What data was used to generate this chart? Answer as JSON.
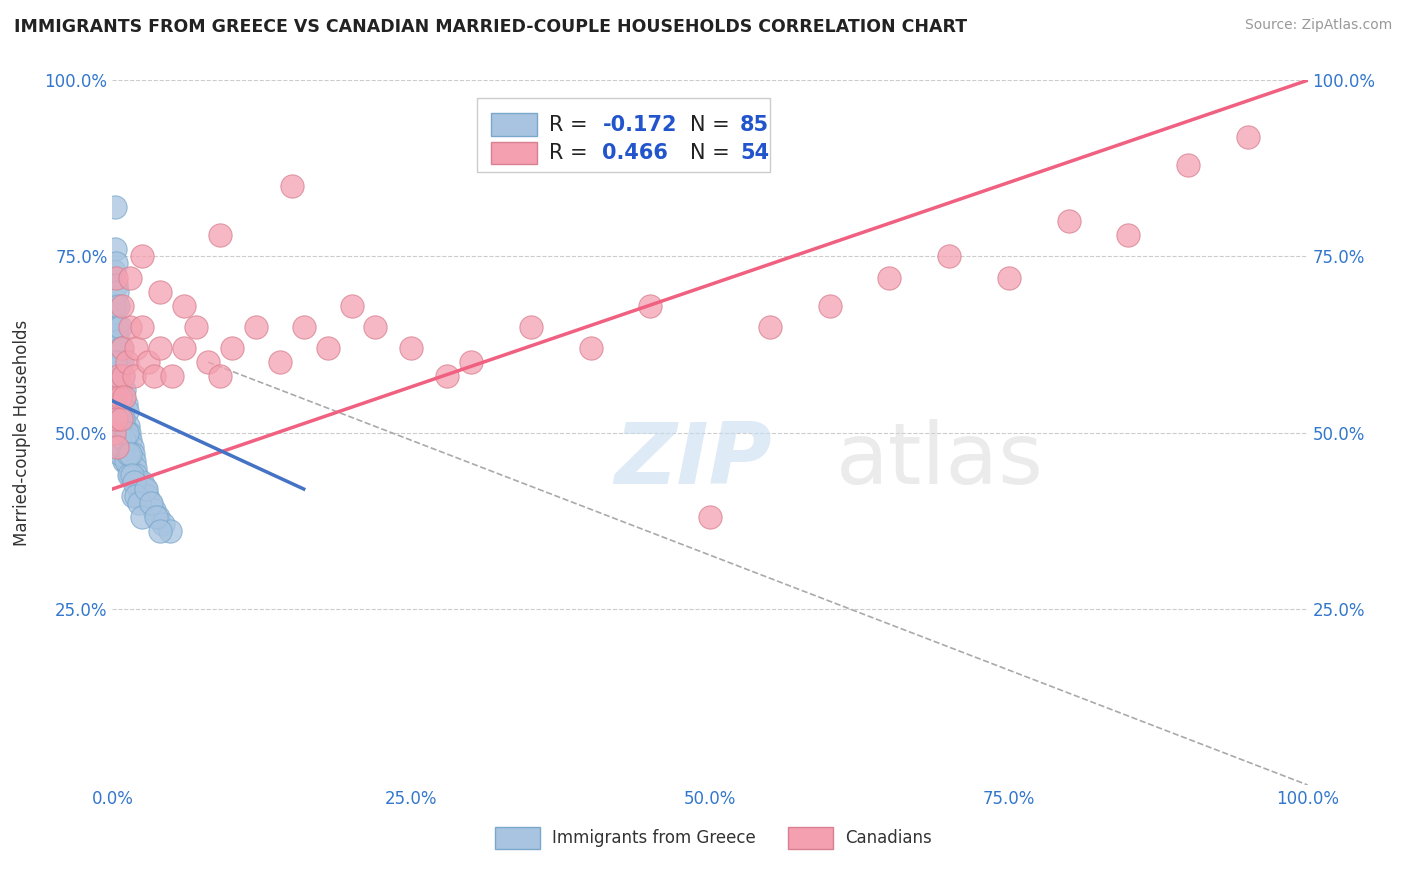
{
  "title": "IMMIGRANTS FROM GREECE VS CANADIAN MARRIED-COUPLE HOUSEHOLDS CORRELATION CHART",
  "source": "Source: ZipAtlas.com",
  "ylabel": "Married-couple Households",
  "xlim": [
    0.0,
    1.0
  ],
  "ylim": [
    0.0,
    1.0
  ],
  "xticks": [
    0.0,
    0.25,
    0.5,
    0.75,
    1.0
  ],
  "xticklabels": [
    "0.0%",
    "25.0%",
    "50.0%",
    "75.0%",
    "100.0%"
  ],
  "yticks_left": [
    0.25,
    0.5,
    0.75,
    1.0
  ],
  "yticklabels_left": [
    "25.0%",
    "50.0%",
    "75.0%",
    "100.0%"
  ],
  "yticks_right": [
    0.25,
    0.5,
    0.75,
    1.0
  ],
  "yticklabels_right": [
    "25.0%",
    "50.0%",
    "75.0%",
    "100.0%"
  ],
  "blue_R": -0.172,
  "blue_N": 85,
  "pink_R": 0.466,
  "pink_N": 54,
  "blue_color": "#a8c4e0",
  "pink_color": "#f4a0b0",
  "blue_line_color": "#4472c4",
  "pink_line_color": "#f06080",
  "grid_color": "#cccccc",
  "blue_line_x0": 0.0,
  "blue_line_x1": 0.16,
  "blue_line_y0": 0.545,
  "blue_line_y1": 0.42,
  "pink_line_x0": 0.0,
  "pink_line_x1": 1.0,
  "pink_line_y0": 0.42,
  "pink_line_y1": 1.0,
  "dash_line_x0": 0.08,
  "dash_line_x1": 1.0,
  "dash_line_y0": 0.6,
  "dash_line_y1": 0.0,
  "blue_x": [
    0.001,
    0.001,
    0.002,
    0.002,
    0.002,
    0.003,
    0.003,
    0.003,
    0.003,
    0.004,
    0.004,
    0.004,
    0.004,
    0.005,
    0.005,
    0.005,
    0.005,
    0.006,
    0.006,
    0.006,
    0.006,
    0.007,
    0.007,
    0.007,
    0.007,
    0.008,
    0.008,
    0.008,
    0.009,
    0.009,
    0.009,
    0.01,
    0.01,
    0.01,
    0.011,
    0.011,
    0.012,
    0.012,
    0.013,
    0.013,
    0.014,
    0.014,
    0.015,
    0.015,
    0.016,
    0.017,
    0.018,
    0.019,
    0.02,
    0.021,
    0.022,
    0.023,
    0.025,
    0.027,
    0.029,
    0.031,
    0.035,
    0.038,
    0.042,
    0.048,
    0.001,
    0.002,
    0.003,
    0.004,
    0.005,
    0.006,
    0.007,
    0.008,
    0.009,
    0.01,
    0.011,
    0.012,
    0.013,
    0.014,
    0.015,
    0.016,
    0.017,
    0.018,
    0.02,
    0.022,
    0.025,
    0.028,
    0.032,
    0.036,
    0.04
  ],
  "blue_y": [
    0.73,
    0.67,
    0.82,
    0.76,
    0.68,
    0.74,
    0.71,
    0.64,
    0.58,
    0.7,
    0.65,
    0.6,
    0.55,
    0.68,
    0.63,
    0.58,
    0.52,
    0.65,
    0.6,
    0.55,
    0.5,
    0.62,
    0.57,
    0.52,
    0.47,
    0.6,
    0.55,
    0.5,
    0.58,
    0.53,
    0.48,
    0.56,
    0.51,
    0.46,
    0.54,
    0.49,
    0.53,
    0.48,
    0.51,
    0.46,
    0.5,
    0.45,
    0.49,
    0.44,
    0.48,
    0.47,
    0.46,
    0.45,
    0.44,
    0.43,
    0.42,
    0.41,
    0.43,
    0.42,
    0.41,
    0.4,
    0.39,
    0.38,
    0.37,
    0.36,
    0.54,
    0.6,
    0.57,
    0.53,
    0.5,
    0.47,
    0.52,
    0.48,
    0.52,
    0.49,
    0.46,
    0.5,
    0.47,
    0.44,
    0.47,
    0.44,
    0.41,
    0.43,
    0.41,
    0.4,
    0.38,
    0.42,
    0.4,
    0.38,
    0.36
  ],
  "pink_x": [
    0.001,
    0.002,
    0.003,
    0.004,
    0.005,
    0.006,
    0.007,
    0.008,
    0.009,
    0.01,
    0.012,
    0.015,
    0.018,
    0.02,
    0.025,
    0.03,
    0.035,
    0.04,
    0.05,
    0.06,
    0.07,
    0.08,
    0.09,
    0.1,
    0.12,
    0.14,
    0.16,
    0.18,
    0.2,
    0.22,
    0.25,
    0.28,
    0.3,
    0.35,
    0.4,
    0.45,
    0.5,
    0.55,
    0.6,
    0.65,
    0.7,
    0.75,
    0.8,
    0.85,
    0.9,
    0.95,
    0.003,
    0.008,
    0.015,
    0.025,
    0.04,
    0.06,
    0.09,
    0.15
  ],
  "pink_y": [
    0.5,
    0.55,
    0.52,
    0.48,
    0.58,
    0.55,
    0.52,
    0.62,
    0.58,
    0.55,
    0.6,
    0.65,
    0.58,
    0.62,
    0.65,
    0.6,
    0.58,
    0.62,
    0.58,
    0.62,
    0.65,
    0.6,
    0.58,
    0.62,
    0.65,
    0.6,
    0.65,
    0.62,
    0.68,
    0.65,
    0.62,
    0.58,
    0.6,
    0.65,
    0.62,
    0.68,
    0.38,
    0.65,
    0.68,
    0.72,
    0.75,
    0.72,
    0.8,
    0.78,
    0.88,
    0.92,
    0.72,
    0.68,
    0.72,
    0.75,
    0.7,
    0.68,
    0.78,
    0.85
  ]
}
